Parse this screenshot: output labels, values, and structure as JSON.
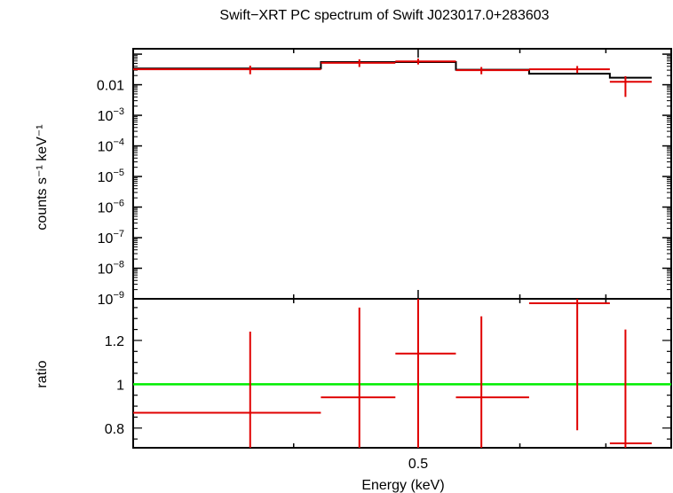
{
  "chart_data": [
    {
      "type": "line",
      "title": "Swift−XRT PC spectrum of Swift J023017.0+283603",
      "ylabel": "counts s⁻¹ keV⁻¹",
      "yscale": "log",
      "ylim": [
        1e-09,
        0.15
      ],
      "y_ticks": [
        {
          "value": 0.01,
          "text": "0.01",
          "base": "",
          "exp": ""
        },
        {
          "value": 0.001,
          "text": "",
          "base": "10",
          "exp": "−3"
        },
        {
          "value": 0.0001,
          "text": "",
          "base": "10",
          "exp": "−4"
        },
        {
          "value": 1e-05,
          "text": "",
          "base": "10",
          "exp": "−5"
        },
        {
          "value": 1e-06,
          "text": "",
          "base": "10",
          "exp": "−6"
        },
        {
          "value": 1e-07,
          "text": "",
          "base": "10",
          "exp": "−7"
        },
        {
          "value": 1e-08,
          "text": "",
          "base": "10",
          "exp": "−8"
        },
        {
          "value": 1e-09,
          "text": "",
          "base": "10",
          "exp": "−9"
        }
      ],
      "xscale": "log",
      "xlim": [
        0.3,
        10
      ],
      "series": [
        {
          "color": "#e00000",
          "kind": "data",
          "points": [
            {
              "x": 0.37,
              "xlo": 0.3,
              "xhi": 0.42,
              "y": 0.032,
              "ylo": 0.022,
              "yhi": 0.042
            },
            {
              "x": 0.45,
              "xlo": 0.42,
              "xhi": 0.48,
              "y": 0.052,
              "ylo": 0.038,
              "yhi": 0.068
            },
            {
              "x": 0.5,
              "xlo": 0.48,
              "xhi": 0.535,
              "y": 0.058,
              "ylo": 0.046,
              "yhi": 0.072
            },
            {
              "x": 0.56,
              "xlo": 0.535,
              "xhi": 0.61,
              "y": 0.03,
              "ylo": 0.022,
              "yhi": 0.038
            },
            {
              "x": 0.665,
              "xlo": 0.61,
              "xhi": 0.705,
              "y": 0.032,
              "ylo": 0.024,
              "yhi": 0.041
            },
            {
              "x": 0.725,
              "xlo": 0.705,
              "xhi": 0.76,
              "y": 0.0125,
              "ylo": 0.004,
              "yhi": 0.019
            }
          ]
        },
        {
          "color": "#000000",
          "kind": "model",
          "steps": [
            {
              "xlo": 0.3,
              "xhi": 0.42,
              "y": 0.034
            },
            {
              "xlo": 0.42,
              "xhi": 0.535,
              "y": 0.055
            },
            {
              "xlo": 0.535,
              "xhi": 0.61,
              "y": 0.031
            },
            {
              "xlo": 0.61,
              "xhi": 0.705,
              "y": 0.023
            },
            {
              "xlo": 0.705,
              "xhi": 0.76,
              "y": 0.017
            }
          ]
        }
      ]
    },
    {
      "type": "scatter",
      "xlabel": "Energy (keV)",
      "ylabel": "ratio",
      "ylim": [
        0.71,
        1.39
      ],
      "y_ticks": [
        {
          "value": 0.8,
          "text": "0.8"
        },
        {
          "value": 1.0,
          "text": "1"
        },
        {
          "value": 1.2,
          "text": "1.2"
        }
      ],
      "x_ticks": [
        {
          "value": 0.5,
          "text": "0.5"
        }
      ],
      "reference_line": {
        "y": 1.0,
        "color": "#00ee00"
      },
      "series": [
        {
          "color": "#e00000",
          "points": [
            {
              "x": 0.37,
              "xlo": 0.3,
              "xhi": 0.42,
              "y": 0.87,
              "ylo": 0.71,
              "yhi": 1.24
            },
            {
              "x": 0.45,
              "xlo": 0.42,
              "xhi": 0.48,
              "y": 0.94,
              "ylo": 0.71,
              "yhi": 1.35
            },
            {
              "x": 0.5,
              "xlo": 0.48,
              "xhi": 0.535,
              "y": 1.14,
              "ylo": 0.71,
              "yhi": 1.39
            },
            {
              "x": 0.56,
              "xlo": 0.535,
              "xhi": 0.61,
              "y": 0.94,
              "ylo": 0.71,
              "yhi": 1.31
            },
            {
              "x": 0.665,
              "xlo": 0.61,
              "xhi": 0.705,
              "y": 1.37,
              "ylo": 0.79,
              "yhi": 1.39
            },
            {
              "x": 0.725,
              "xlo": 0.705,
              "xhi": 0.76,
              "y": 0.73,
              "ylo": 0.71,
              "yhi": 1.25
            }
          ]
        }
      ]
    }
  ]
}
